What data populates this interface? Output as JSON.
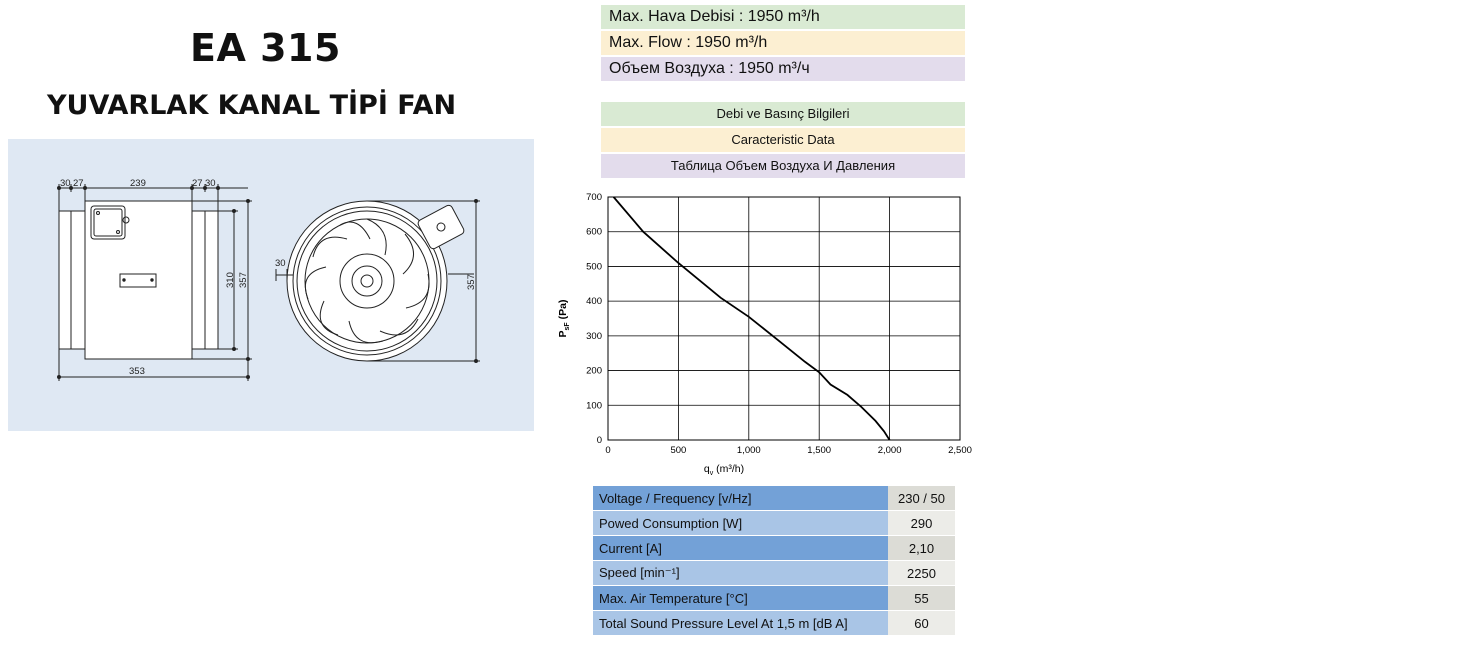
{
  "header": {
    "model": "EA 315",
    "subtitle": "YUVARLAK KANAL TİPİ FAN"
  },
  "drawing": {
    "dims": {
      "d30a": "30",
      "d27a": "27",
      "d239": "239",
      "d27b": "27",
      "d30b": "30",
      "d310": "310",
      "d357a": "357",
      "d353": "353",
      "d30c": "30",
      "d357b": "357"
    }
  },
  "flow": {
    "tr": "Max. Hava Debisi : 1950 m³/h",
    "en": "Max. Flow :  1950 m³/h",
    "ru": "Объем Воздуха : 1950 m³/ч"
  },
  "data_headers": {
    "tr": "Debi ve Basınç Bilgileri",
    "en": "Caracteristic Data",
    "ru": "Таблица Объем Воздуха И Давления"
  },
  "chart_data": {
    "type": "line",
    "x_ticks": [
      "0",
      "500",
      "1,000",
      "1,500",
      "2,000",
      "2,500"
    ],
    "y_ticks": [
      "0",
      "100",
      "200",
      "300",
      "400",
      "500",
      "600",
      "700"
    ],
    "xlabel": "q",
    "xlabel_sub": "v",
    "xlabel_unit": " (m³/h)",
    "ylabel": "P",
    "ylabel_sub": "sF",
    "ylabel_unit": " (Pa)",
    "xlim": [
      0,
      2500
    ],
    "ylim": [
      0,
      700
    ],
    "grid": true,
    "series": [
      {
        "x": [
          40,
          250,
          500,
          800,
          1000,
          1200,
          1400,
          1500,
          1580,
          1700,
          1800,
          1900,
          1960,
          2000
        ],
        "y": [
          700,
          600,
          510,
          410,
          355,
          290,
          225,
          195,
          160,
          130,
          95,
          55,
          25,
          0
        ]
      }
    ]
  },
  "specs": [
    {
      "label": "Voltage / Frequency [v/Hz]",
      "value": "230 / 50"
    },
    {
      "label": "Powed Consumption [W]",
      "value": "290"
    },
    {
      "label": "Current [A]",
      "value": "2,10"
    },
    {
      "label": "Speed [min⁻¹]",
      "value": "2250"
    },
    {
      "label": "Max. Air Temperature  [°C]",
      "value": "55"
    },
    {
      "label": "Total Sound Pressure Level At 1,5 m [dB A]",
      "value": "60"
    }
  ]
}
